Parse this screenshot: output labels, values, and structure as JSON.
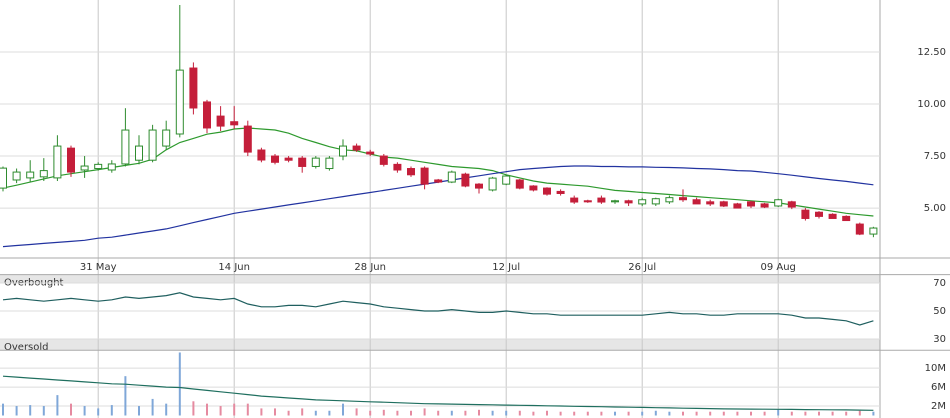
{
  "chart_data": [
    {
      "type": "candlestick",
      "categories": [
        null,
        null,
        null,
        null,
        null,
        null,
        null,
        "31 May",
        null,
        null,
        null,
        null,
        null,
        null,
        null,
        null,
        null,
        "14 Jun",
        null,
        null,
        null,
        null,
        null,
        null,
        null,
        null,
        null,
        "28 Jun",
        null,
        null,
        null,
        null,
        null,
        null,
        null,
        null,
        null,
        "12 Jul",
        null,
        null,
        null,
        null,
        null,
        null,
        null,
        null,
        null,
        "26 Jul",
        null,
        null,
        null,
        null,
        null,
        null,
        null,
        null,
        null,
        "09 Aug",
        null,
        null,
        null,
        null,
        null,
        null,
        null
      ],
      "open": [
        5.96,
        6.35,
        6.45,
        6.5,
        6.45,
        7.88,
        6.83,
        6.9,
        6.83,
        7.12,
        7.3,
        7.3,
        7.98,
        8.56,
        11.73,
        10.1,
        9.42,
        9.15,
        8.94,
        7.79,
        7.5,
        7.4,
        7.4,
        7.0,
        6.9,
        7.5,
        7.98,
        7.69,
        7.5,
        7.1,
        6.9,
        6.92,
        6.35,
        6.25,
        6.63,
        6.15,
        5.87,
        6.15,
        6.35,
        6.06,
        5.96,
        5.8,
        5.48,
        5.35,
        5.48,
        5.3,
        5.35,
        5.2,
        5.2,
        5.3,
        5.5,
        5.4,
        5.3,
        5.3,
        5.2,
        5.3,
        5.2,
        5.1,
        5.3,
        4.9,
        4.8,
        4.7,
        4.6,
        4.23,
        3.75
      ],
      "high": [
        7.0,
        6.9,
        7.3,
        7.4,
        8.5,
        8.0,
        7.5,
        7.2,
        7.3,
        9.8,
        8.5,
        9.0,
        9.2,
        14.76,
        12.0,
        10.2,
        9.9,
        9.9,
        9.2,
        7.9,
        7.6,
        7.5,
        7.5,
        7.5,
        7.5,
        8.3,
        8.1,
        7.8,
        7.6,
        7.2,
        7.0,
        7.0,
        6.4,
        6.8,
        6.7,
        6.2,
        6.5,
        6.6,
        6.4,
        6.1,
        6.0,
        5.9,
        5.6,
        5.4,
        5.6,
        5.4,
        5.4,
        5.5,
        5.5,
        5.6,
        5.9,
        5.5,
        5.4,
        5.35,
        5.25,
        5.35,
        5.25,
        5.45,
        5.35,
        5.0,
        4.85,
        4.75,
        4.65,
        4.3,
        4.1
      ],
      "low": [
        5.8,
        6.2,
        6.25,
        6.3,
        6.3,
        6.5,
        6.45,
        6.8,
        6.7,
        7.0,
        7.1,
        7.2,
        7.8,
        8.4,
        9.5,
        8.6,
        8.7,
        8.8,
        7.5,
        7.2,
        7.1,
        7.2,
        6.7,
        6.9,
        6.8,
        7.3,
        7.7,
        7.5,
        7.0,
        6.7,
        6.5,
        5.9,
        6.2,
        6.2,
        6.0,
        5.7,
        5.8,
        6.1,
        5.9,
        5.8,
        5.6,
        5.6,
        5.2,
        5.25,
        5.2,
        5.2,
        5.1,
        5.1,
        5.1,
        5.2,
        5.3,
        5.2,
        5.1,
        5.05,
        5.0,
        5.0,
        5.0,
        5.05,
        4.95,
        4.4,
        4.5,
        4.55,
        4.4,
        3.7,
        3.6
      ],
      "close": [
        6.92,
        6.73,
        6.73,
        6.8,
        7.98,
        6.73,
        7.02,
        7.1,
        7.12,
        8.75,
        7.98,
        8.75,
        8.75,
        11.63,
        9.81,
        8.85,
        8.94,
        9.0,
        7.69,
        7.31,
        7.2,
        7.3,
        7.0,
        7.4,
        7.4,
        7.98,
        7.79,
        7.6,
        7.1,
        6.83,
        6.6,
        6.15,
        6.25,
        6.73,
        6.06,
        5.96,
        6.44,
        6.54,
        5.96,
        5.87,
        5.67,
        5.7,
        5.29,
        5.3,
        5.29,
        5.35,
        5.25,
        5.4,
        5.45,
        5.5,
        5.4,
        5.2,
        5.2,
        5.1,
        5.0,
        5.1,
        5.05,
        5.4,
        5.05,
        4.5,
        4.6,
        4.5,
        4.4,
        3.75,
        4.04
      ],
      "up_color": "#2e8b2e",
      "down_color": "#c41e3a",
      "overlays": [
        {
          "color": "#2e9a2e",
          "values": [
            5.96,
            6.1,
            6.25,
            6.4,
            6.55,
            6.65,
            6.75,
            6.85,
            6.95,
            7.05,
            7.15,
            7.35,
            7.8,
            8.15,
            8.35,
            8.55,
            8.65,
            8.8,
            8.85,
            8.8,
            8.75,
            8.6,
            8.35,
            8.15,
            7.95,
            7.8,
            7.75,
            7.6,
            7.45,
            7.4,
            7.3,
            7.2,
            7.1,
            7.0,
            6.95,
            6.9,
            6.8,
            6.6,
            6.45,
            6.3,
            6.2,
            6.15,
            6.1,
            6.05,
            5.95,
            5.85,
            5.8,
            5.75,
            5.7,
            5.65,
            5.6,
            5.55,
            5.5,
            5.45,
            5.4,
            5.35,
            5.3,
            5.25,
            5.15,
            5.05,
            4.95,
            4.85,
            4.75,
            4.68,
            4.62
          ]
        },
        {
          "color": "#2233a0",
          "values": [
            3.15,
            3.2,
            3.25,
            3.3,
            3.35,
            3.4,
            3.45,
            3.55,
            3.6,
            3.7,
            3.8,
            3.9,
            4.0,
            4.15,
            4.3,
            4.45,
            4.6,
            4.75,
            4.85,
            4.95,
            5.05,
            5.15,
            5.25,
            5.35,
            5.45,
            5.55,
            5.65,
            5.75,
            5.85,
            5.95,
            6.05,
            6.15,
            6.25,
            6.35,
            6.45,
            6.55,
            6.65,
            6.75,
            6.85,
            6.9,
            6.95,
            7.0,
            7.02,
            7.02,
            7.0,
            7.0,
            6.98,
            6.98,
            6.96,
            6.95,
            6.93,
            6.9,
            6.88,
            6.85,
            6.8,
            6.78,
            6.72,
            6.65,
            6.58,
            6.5,
            6.42,
            6.35,
            6.28,
            6.2,
            6.12
          ]
        }
      ],
      "ylim": [
        2.6,
        15
      ],
      "yticks": [
        {
          "value": 12.5,
          "label": "12.50"
        },
        {
          "value": 10,
          "label": "10.00"
        },
        {
          "value": 7.5,
          "label": "7.50"
        },
        {
          "value": 5,
          "label": "5.00"
        }
      ],
      "grid": true
    },
    {
      "type": "line",
      "values": [
        58,
        59,
        58,
        57,
        58,
        59,
        58,
        57,
        58,
        60,
        59,
        60,
        61,
        63,
        60,
        59,
        58,
        59,
        55,
        53,
        53,
        54,
        54,
        53,
        55,
        57,
        56,
        55,
        53,
        52,
        51,
        50,
        50,
        51,
        50,
        49,
        49,
        50,
        49,
        48,
        48,
        47,
        47,
        47,
        47,
        47,
        47,
        47,
        48,
        49,
        48,
        48,
        47,
        47,
        48,
        48,
        48,
        48,
        47,
        45,
        45,
        44,
        43,
        40,
        43
      ],
      "color": "#1f5f5f",
      "bands": [
        {
          "label": "Overbought",
          "from": 70,
          "to": 76
        },
        {
          "label": "Oversold",
          "from": 22,
          "to": 30
        }
      ],
      "ylim": [
        22,
        76
      ],
      "yticks": [
        70,
        50,
        30
      ]
    },
    {
      "type": "bar",
      "values": [
        2.5,
        2.0,
        2.2,
        2.0,
        4.3,
        2.5,
        2.0,
        1.5,
        2.2,
        8.3,
        2.0,
        3.5,
        2.5,
        13.3,
        3.0,
        2.5,
        2.0,
        2.5,
        2.5,
        1.5,
        1.5,
        1.0,
        1.5,
        1.0,
        1.0,
        2.5,
        1.5,
        1.0,
        1.2,
        1.0,
        1.0,
        1.5,
        1.0,
        1.0,
        1.0,
        1.2,
        1.0,
        1.0,
        1.0,
        0.8,
        1.0,
        0.8,
        0.8,
        0.8,
        0.8,
        0.8,
        0.8,
        0.8,
        1.0,
        0.8,
        0.8,
        0.8,
        0.8,
        0.8,
        0.8,
        0.8,
        0.8,
        1.2,
        0.8,
        0.8,
        0.8,
        0.8,
        0.8,
        1.0,
        0.8
      ],
      "up_color": "#7fa7d8",
      "down_color": "#e58aa0",
      "average": {
        "color": "#1f6f5f",
        "values": [
          8.3,
          8.1,
          7.9,
          7.7,
          7.5,
          7.3,
          7.1,
          6.9,
          6.7,
          6.6,
          6.4,
          6.2,
          6.0,
          5.9,
          5.6,
          5.3,
          5.0,
          4.7,
          4.4,
          4.1,
          3.9,
          3.7,
          3.5,
          3.3,
          3.2,
          3.1,
          3.0,
          2.9,
          2.8,
          2.7,
          2.6,
          2.5,
          2.45,
          2.4,
          2.35,
          2.3,
          2.25,
          2.2,
          2.15,
          2.1,
          2.05,
          2.0,
          1.95,
          1.9,
          1.85,
          1.8,
          1.75,
          1.7,
          1.65,
          1.6,
          1.55,
          1.5,
          1.45,
          1.4,
          1.38,
          1.35,
          1.32,
          1.3,
          1.28,
          1.25,
          1.22,
          1.2,
          1.18,
          1.15,
          1.1
        ]
      },
      "ylim": [
        0,
        13.4
      ],
      "yticks": [
        {
          "value": 10,
          "label": "10M"
        },
        {
          "value": 6,
          "label": "6M"
        },
        {
          "value": 2,
          "label": "2M"
        }
      ]
    }
  ]
}
